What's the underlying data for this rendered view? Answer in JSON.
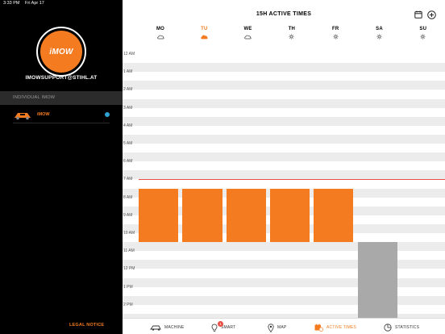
{
  "status_bar": {
    "time": "3:33 PM",
    "date": "Fri Apr 17"
  },
  "sidebar": {
    "logo_text": "iMOW",
    "account": "IMOWSUPPORT@STIHL.AT",
    "section_header": "INDIVIDUAL IMOW",
    "device": {
      "name": "iMOW",
      "status_color": "#2ea3d4"
    },
    "legal_notice": "LEGAL NOTICE"
  },
  "header": {
    "title": "15H ACTIVE TIMES",
    "calendar_icon": "calendar-icon",
    "add_icon": "plus-circle-icon"
  },
  "days": [
    {
      "label": "MO",
      "weather": "cloud",
      "active": false
    },
    {
      "label": "TU",
      "weather": "cloud",
      "active": true
    },
    {
      "label": "WE",
      "weather": "cloud",
      "active": false
    },
    {
      "label": "TH",
      "weather": "sun",
      "active": false
    },
    {
      "label": "FR",
      "weather": "sun",
      "active": false
    },
    {
      "label": "SA",
      "weather": "sun",
      "active": false
    },
    {
      "label": "SU",
      "weather": "sun",
      "active": false
    }
  ],
  "hours": [
    "12 AM",
    "1 AM",
    "2 AM",
    "3 AM",
    "4 AM",
    "5 AM",
    "6 AM",
    "7 AM",
    "8 AM",
    "9 AM",
    "10 AM",
    "11 AM",
    "12 PM",
    "1 PM",
    "2 PM"
  ],
  "current_time_hour": 7.0,
  "active_blocks": [
    {
      "day": 0,
      "start": 7.5,
      "end": 10.5,
      "color": "#f47b20"
    },
    {
      "day": 1,
      "start": 7.5,
      "end": 10.5,
      "color": "#f47b20"
    },
    {
      "day": 2,
      "start": 7.5,
      "end": 10.5,
      "color": "#f47b20"
    },
    {
      "day": 3,
      "start": 7.5,
      "end": 10.5,
      "color": "#f47b20"
    },
    {
      "day": 4,
      "start": 7.5,
      "end": 10.5,
      "color": "#f47b20"
    },
    {
      "day": 5,
      "start": 10.5,
      "end": 15.0,
      "color": "#a9a9a9"
    }
  ],
  "nav": {
    "items": [
      {
        "label": "MACHINE",
        "icon": "mower-icon",
        "active": false
      },
      {
        "label": "SMART",
        "icon": "lightbulb-icon",
        "active": false,
        "badge": "1"
      },
      {
        "label": "MAP",
        "icon": "map-pin-icon",
        "active": false
      },
      {
        "label": "ACTIVE TIMES",
        "icon": "calendar-clock-icon",
        "active": true
      },
      {
        "label": "STATISTICS",
        "icon": "pie-chart-icon",
        "active": false
      }
    ]
  },
  "colors": {
    "accent": "#f47b20",
    "inactive_block": "#a9a9a9",
    "now_line": "#e94d43"
  }
}
